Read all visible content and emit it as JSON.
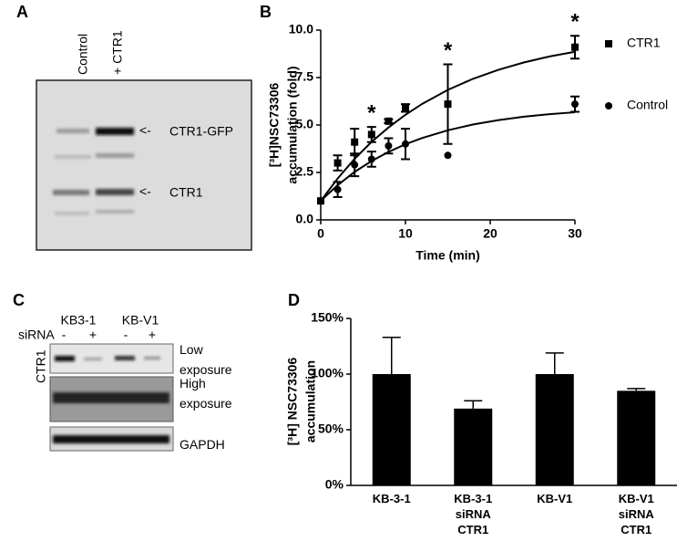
{
  "panels": {
    "A": {
      "letter": "A",
      "lanes": [
        "Control",
        "+ CTR1"
      ],
      "bands": [
        "CTR1-GFP",
        "CTR1"
      ]
    },
    "C": {
      "letter": "C",
      "cell_lines": [
        "KB3-1",
        "KB-V1"
      ],
      "treatment": "siRNA",
      "signs": [
        "-",
        "+",
        "-",
        "+"
      ],
      "protein": "CTR1",
      "rows": [
        "Low exposure",
        "High exposure",
        "GAPDH"
      ]
    }
  },
  "chart_data": [
    {
      "type": "scatter",
      "letter": "B",
      "ylabel": [
        "[³H]NSC73306",
        "accumulation (fold)"
      ],
      "xlabel": "Time (min)",
      "x": [
        0,
        2,
        4,
        6,
        8,
        10,
        15,
        30
      ],
      "fit_x": [
        0,
        2,
        4,
        6,
        8,
        10,
        12,
        15,
        18,
        21,
        24,
        27,
        30
      ],
      "series": [
        {
          "name": "CTR1",
          "marker": "square",
          "color": "#000000",
          "values": [
            1.0,
            3.0,
            4.1,
            4.5,
            5.2,
            5.9,
            6.1,
            9.1
          ],
          "errors": [
            0,
            0.4,
            0.7,
            0.4,
            0.1,
            0.2,
            2.1,
            0.6
          ],
          "fit": [
            1.0,
            2.18,
            3.22,
            4.11,
            4.87,
            5.54,
            6.12,
            6.85,
            7.44,
            7.91,
            8.3,
            8.61,
            8.86
          ]
        },
        {
          "name": "Control",
          "marker": "circle",
          "color": "#000000",
          "values": [
            1.0,
            1.6,
            2.9,
            3.2,
            3.9,
            4.0,
            3.4,
            6.1
          ],
          "errors": [
            0,
            0.4,
            0.6,
            0.4,
            0.4,
            0.8,
            0,
            0.4
          ],
          "fit": [
            1.0,
            1.83,
            2.53,
            3.1,
            3.58,
            3.99,
            4.32,
            4.72,
            5.03,
            5.26,
            5.44,
            5.57,
            5.67
          ]
        }
      ],
      "annotations": [
        {
          "text": "*",
          "x": 6
        },
        {
          "text": "*",
          "x": 15
        },
        {
          "text": "*",
          "x": 30
        }
      ],
      "xlim": [
        0,
        30
      ],
      "xticks": [
        0,
        10,
        20,
        30
      ],
      "ylim": [
        0,
        10
      ],
      "yticks": [
        {
          "value": 0,
          "label": "0.0"
        },
        2.5,
        {
          "value": 5,
          "label": "5.0"
        },
        7.5,
        {
          "value": 10,
          "label": "10.0"
        }
      ]
    },
    {
      "type": "bar",
      "letter": "D",
      "ylabel": [
        "[³H] NSC73306",
        "accumulation"
      ],
      "categories": [
        "KB-3-1",
        "KB-3-1 siRNA CTR1",
        "KB-V1",
        "KB-V1 siRNA CTR1"
      ],
      "values": [
        100,
        69,
        100,
        85
      ],
      "errors": [
        33,
        7,
        19,
        2
      ],
      "color": "#000000",
      "ylim": [
        0,
        150
      ],
      "yticks": [
        {
          "value": 0,
          "label": "0%"
        },
        {
          "value": 50,
          "label": "50%"
        },
        {
          "value": 100,
          "label": "100%"
        },
        {
          "value": 150,
          "label": "150%"
        }
      ]
    }
  ]
}
